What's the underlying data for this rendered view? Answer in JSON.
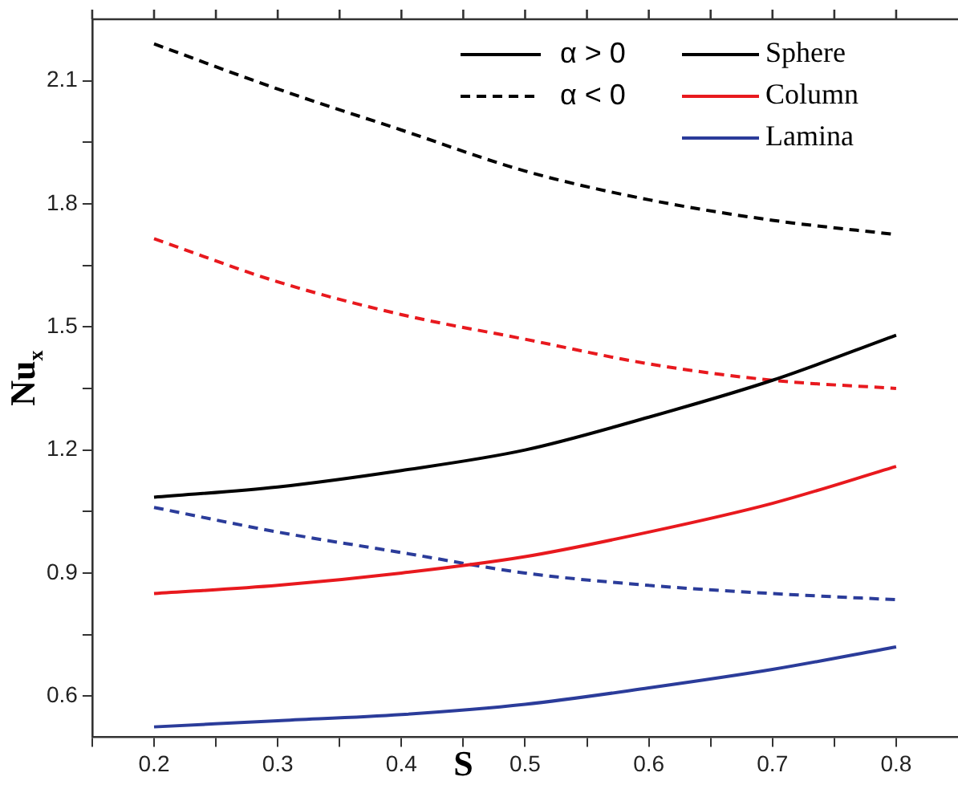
{
  "chart_data": {
    "type": "line",
    "xlabel": "S",
    "ylabel": "Nu$_{x}$",
    "legend": "top right",
    "grid": false,
    "annotations": [
      "α > 0",
      "α < 0"
    ],
    "x": [
      0.2,
      0.3,
      0.4,
      0.5,
      0.6,
      0.7,
      0.8
    ],
    "xlim": [
      0.15,
      0.85
    ],
    "xticks": [
      {
        "value": 0.15,
        "label": null
      },
      0.2,
      {
        "value": 0.25,
        "label": null
      },
      0.3,
      {
        "value": 0.35,
        "label": null
      },
      0.4,
      {
        "value": 0.45,
        "label": null
      },
      0.5,
      {
        "value": 0.55,
        "label": null
      },
      0.6,
      {
        "value": 0.65,
        "label": null
      },
      0.7,
      {
        "value": 0.75,
        "label": null
      },
      0.8
    ],
    "ylim": [
      0.5,
      2.25
    ],
    "yticks": [
      0.6,
      {
        "value": 0.75,
        "label": null
      },
      0.9,
      {
        "value": 1.05,
        "label": null
      },
      1.2,
      {
        "value": 1.35,
        "label": null
      },
      1.5,
      {
        "value": 1.65,
        "label": null
      },
      1.8,
      {
        "value": 1.95,
        "label": null
      },
      2.1
    ],
    "series": [
      {
        "name": "Sphere",
        "color": "#000000",
        "line_style": "solid",
        "values": [
          1.085,
          1.11,
          1.15,
          1.2,
          1.28,
          1.37,
          1.48
        ]
      },
      {
        "name": "Column",
        "color": "#e8191e",
        "line_style": "solid",
        "values": [
          0.85,
          0.87,
          0.9,
          0.94,
          1.0,
          1.07,
          1.16
        ]
      },
      {
        "name": "Lamina",
        "color": "#2b3c9a",
        "line_style": "solid",
        "values": [
          0.525,
          0.54,
          0.555,
          0.58,
          0.62,
          0.665,
          0.72
        ]
      },
      {
        "color": "#000000",
        "line_style": "dashed",
        "values": [
          2.19,
          2.08,
          1.98,
          1.88,
          1.81,
          1.76,
          1.725
        ]
      },
      {
        "color": "#e8191e",
        "line_style": "dashed",
        "values": [
          1.715,
          1.61,
          1.53,
          1.47,
          1.41,
          1.37,
          1.35
        ]
      },
      {
        "color": "#2b3c9a",
        "line_style": "dashed",
        "values": [
          1.06,
          1.0,
          0.95,
          0.9,
          0.87,
          0.85,
          0.835
        ]
      }
    ]
  }
}
